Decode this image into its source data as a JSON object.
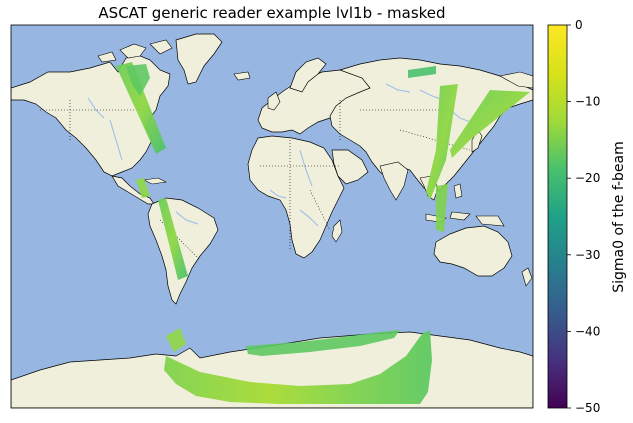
{
  "figure": {
    "title": "ASCAT generic reader example lvl1b - masked"
  },
  "map": {
    "projection": "plate-carree",
    "ocean_color": "#97B6E1",
    "land_color": "#EFEFDB",
    "coastline_color": "#000000",
    "borders": "dotted",
    "rivers_color": "#A5C3E6",
    "masked_regions": "land only"
  },
  "colorbar": {
    "label": "Sigma0 of the f-beam",
    "colormap": "viridis",
    "range": [
      -50,
      0
    ],
    "ticks": [
      {
        "value": 0,
        "label": "0"
      },
      {
        "value": -10,
        "label": "−10"
      },
      {
        "value": -20,
        "label": "−20"
      },
      {
        "value": -30,
        "label": "−30"
      },
      {
        "value": -40,
        "label": "−40"
      },
      {
        "value": -50,
        "label": "−50"
      }
    ]
  }
}
